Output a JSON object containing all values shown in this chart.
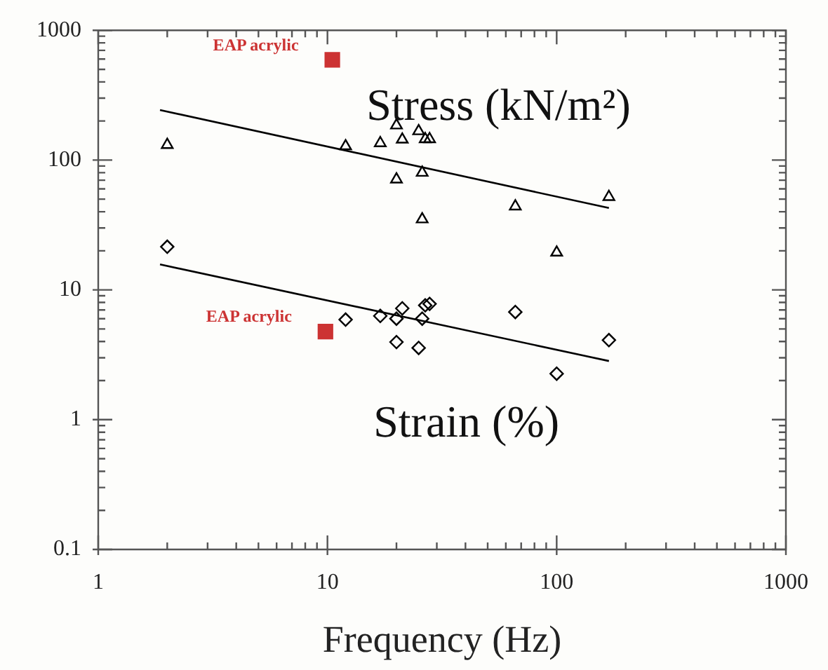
{
  "chart_data": {
    "type": "scatter",
    "xlabel": "Frequency (Hz)",
    "log": "xy",
    "grid": false,
    "legend": false,
    "xlim": [
      1,
      1000
    ],
    "ylim": [
      0.1,
      1000
    ],
    "xticks": [
      1,
      {
        "value": 2,
        "label": null
      },
      {
        "value": 3,
        "label": null
      },
      {
        "value": 4,
        "label": null
      },
      {
        "value": 5,
        "label": null
      },
      {
        "value": 6,
        "label": null
      },
      {
        "value": 7,
        "label": null
      },
      {
        "value": 8,
        "label": null
      },
      {
        "value": 9,
        "label": null
      },
      10,
      {
        "value": 20,
        "label": null
      },
      {
        "value": 30,
        "label": null
      },
      {
        "value": 40,
        "label": null
      },
      {
        "value": 50,
        "label": null
      },
      {
        "value": 60,
        "label": null
      },
      {
        "value": 70,
        "label": null
      },
      {
        "value": 80,
        "label": null
      },
      {
        "value": 90,
        "label": null
      },
      100,
      {
        "value": 200,
        "label": null
      },
      {
        "value": 300,
        "label": null
      },
      {
        "value": 400,
        "label": null
      },
      {
        "value": 500,
        "label": null
      },
      {
        "value": 600,
        "label": null
      },
      {
        "value": 700,
        "label": null
      },
      {
        "value": 800,
        "label": null
      },
      {
        "value": 900,
        "label": null
      },
      1000
    ],
    "yticks": [
      0.1,
      {
        "value": 0.2,
        "label": null
      },
      {
        "value": 0.3,
        "label": null
      },
      {
        "value": 0.4,
        "label": null
      },
      {
        "value": 0.5,
        "label": null
      },
      {
        "value": 0.6,
        "label": null
      },
      {
        "value": 0.7,
        "label": null
      },
      {
        "value": 0.8,
        "label": null
      },
      {
        "value": 0.9,
        "label": null
      },
      1,
      {
        "value": 2,
        "label": null
      },
      {
        "value": 3,
        "label": null
      },
      {
        "value": 4,
        "label": null
      },
      {
        "value": 5,
        "label": null
      },
      {
        "value": 6,
        "label": null
      },
      {
        "value": 7,
        "label": null
      },
      {
        "value": 8,
        "label": null
      },
      {
        "value": 9,
        "label": null
      },
      10,
      {
        "value": 20,
        "label": null
      },
      {
        "value": 30,
        "label": null
      },
      {
        "value": 40,
        "label": null
      },
      {
        "value": 50,
        "label": null
      },
      {
        "value": 60,
        "label": null
      },
      {
        "value": 70,
        "label": null
      },
      {
        "value": 80,
        "label": null
      },
      {
        "value": 90,
        "label": null
      },
      100,
      {
        "value": 200,
        "label": null
      },
      {
        "value": 300,
        "label": null
      },
      {
        "value": 400,
        "label": null
      },
      {
        "value": 500,
        "label": null
      },
      {
        "value": 600,
        "label": null
      },
      {
        "value": 700,
        "label": null
      },
      {
        "value": 800,
        "label": null
      },
      {
        "value": 900,
        "label": null
      },
      1000
    ],
    "series": [
      {
        "name": "Stress (kN/m²)",
        "marker": "triangle",
        "color": "#000000",
        "x": [
          2,
          12,
          17,
          20,
          21.2,
          25,
          26.7,
          27.9,
          20,
          25.9,
          25.9,
          66,
          100,
          169
        ],
        "values": [
          131,
          128,
          135,
          185,
          144,
          167,
          145,
          145,
          71,
          80,
          35,
          44,
          19.4,
          52
        ]
      },
      {
        "name": "Strain (%)",
        "marker": "diamond",
        "color": "#000000",
        "x": [
          2,
          12,
          17,
          20,
          21.2,
          20,
          25,
          25.9,
          26.7,
          27.9,
          66,
          100,
          169
        ],
        "values": [
          21.5,
          5.9,
          6.3,
          6.0,
          7.2,
          3.96,
          3.57,
          6.0,
          7.6,
          7.8,
          6.75,
          2.26,
          4.1
        ]
      },
      {
        "type": "line",
        "marker": "none",
        "line_style": "solid",
        "color": "#000000",
        "x": [
          1.86,
          169
        ],
        "values": [
          243,
          42.7
        ]
      },
      {
        "type": "line",
        "marker": "none",
        "line_style": "solid",
        "color": "#000000",
        "x": [
          1.86,
          169
        ],
        "values": [
          15.7,
          2.83
        ]
      },
      {
        "name": "EAP acrylic",
        "marker": "square",
        "color": "#cc3333",
        "x": [
          10.5,
          9.8
        ],
        "values": [
          592,
          4.77
        ]
      }
    ]
  }
}
